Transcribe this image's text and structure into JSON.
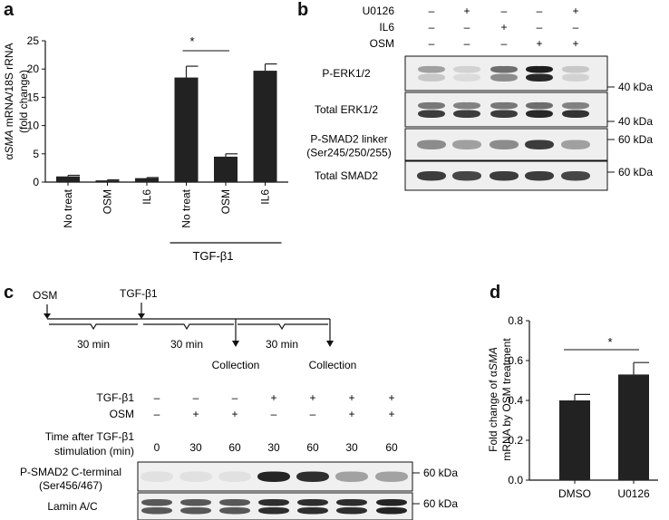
{
  "panels": {
    "a": {
      "label": "a",
      "ylabel_line1_prefix": "α",
      "ylabel_line1_italic": "SMA",
      "ylabel_line1_suffix": " mRNA/18S rRNA",
      "ylabel_line2": "(fold change)",
      "significance": "*",
      "group_label": "TGF-β1",
      "yticks": [
        "0",
        "5",
        "10",
        "15",
        "20",
        "25"
      ]
    },
    "b": {
      "label": "b",
      "treatments": [
        {
          "name": "U0126",
          "signs": [
            "–",
            "+",
            "–",
            "–",
            "+"
          ]
        },
        {
          "name": "IL6",
          "signs": [
            "–",
            "–",
            "+",
            "–",
            "–"
          ]
        },
        {
          "name": "OSM",
          "signs": [
            "–",
            "–",
            "–",
            "+",
            "+"
          ]
        }
      ],
      "blots": [
        {
          "name": "P-ERK1/2",
          "marker": "40 kDa"
        },
        {
          "name": "Total ERK1/2",
          "marker": "40 kDa"
        },
        {
          "name_line1": "P-SMAD2 linker",
          "name_line2": "(Ser245/250/255)",
          "marker": "60 kDa"
        },
        {
          "name": "Total SMAD2",
          "marker": "60 kDa"
        }
      ]
    },
    "c": {
      "label": "c",
      "osm": "OSM",
      "tgf": "TGF-β1",
      "intervals": [
        "30 min",
        "30 min",
        "30 min"
      ],
      "collection": "Collection",
      "rows": [
        {
          "name": "TGF-β1",
          "vals": [
            "–",
            "–",
            "–",
            "+",
            "+",
            "+",
            "+"
          ]
        },
        {
          "name": "OSM",
          "vals": [
            "–",
            "+",
            "+",
            "–",
            "–",
            "+",
            "+"
          ]
        }
      ],
      "time_label_line1": "Time after TGF-β1",
      "time_label_line2": "stimulation (min)",
      "times": [
        "0",
        "30",
        "60",
        "30",
        "60",
        "30",
        "60"
      ],
      "blots": [
        {
          "name_line1": "P-SMAD2 C-terminal",
          "name_line2": "(Ser456/467)",
          "marker": "60 kDa"
        },
        {
          "name": "Lamin A/C",
          "marker": "60 kDa"
        }
      ]
    },
    "d": {
      "label": "d",
      "ylabel_line1_prefix": "Fold change of α",
      "ylabel_line1_italic": "SMA",
      "ylabel_line2": "mRNA by OSM treatment",
      "significance": "*",
      "yticks": [
        "0.0",
        "0.2",
        "0.4",
        "0.6",
        "0.8"
      ]
    }
  },
  "chart_data": [
    {
      "type": "bar",
      "categories": [
        "No treat",
        "OSM",
        "IL6",
        "No treat",
        "OSM",
        "IL6"
      ],
      "values": [
        1.0,
        0.3,
        0.7,
        18.5,
        4.5,
        19.7
      ],
      "errors": [
        0.2,
        0.1,
        0.1,
        2.0,
        0.5,
        1.2
      ],
      "ylim": [
        0,
        25
      ]
    },
    {
      "type": "bar",
      "categories": [
        "DMSO",
        "U0126"
      ],
      "values": [
        0.4,
        0.53
      ],
      "errors": [
        0.03,
        0.06
      ],
      "ylim": [
        0,
        0.8
      ]
    }
  ]
}
